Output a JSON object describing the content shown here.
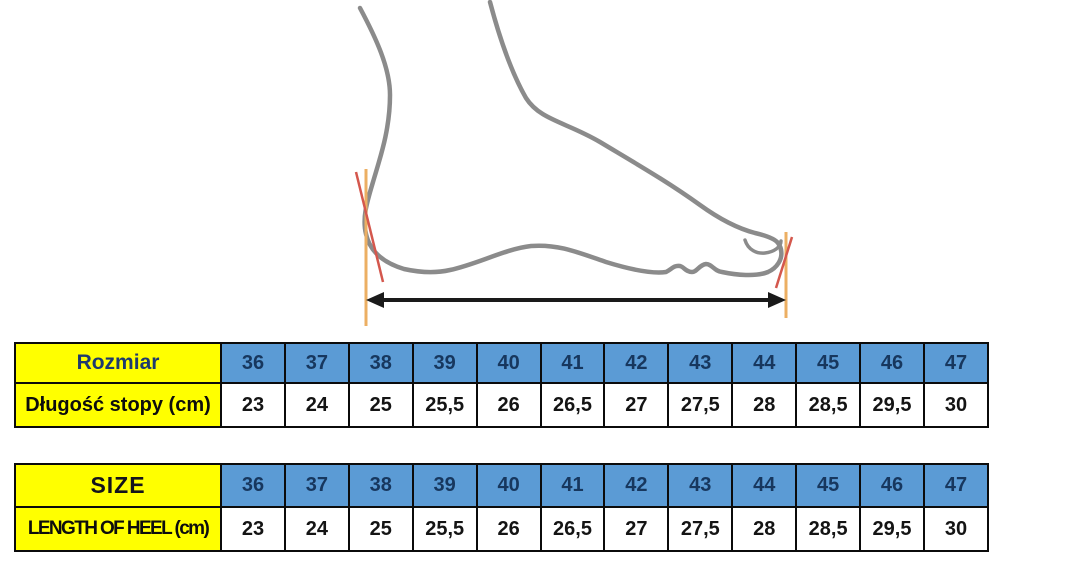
{
  "chart_data": {
    "type": "table",
    "tables": [
      {
        "header_label": "Rozmiar",
        "row_label": "Długość stopy (cm)",
        "sizes": [
          "36",
          "37",
          "38",
          "39",
          "40",
          "41",
          "42",
          "43",
          "44",
          "45",
          "46",
          "47"
        ],
        "lengths_cm": [
          "23",
          "24",
          "25",
          "25,5",
          "26",
          "26,5",
          "27",
          "27,5",
          "28",
          "28,5",
          "29,5",
          "30"
        ]
      },
      {
        "header_label": "SIZE",
        "row_label": "LENGTH OF HEEL (cm)",
        "sizes": [
          "36",
          "37",
          "38",
          "39",
          "40",
          "41",
          "42",
          "43",
          "44",
          "45",
          "46",
          "47"
        ],
        "lengths_cm": [
          "23",
          "24",
          "25",
          "25,5",
          "26",
          "26,5",
          "27",
          "27,5",
          "28",
          "28,5",
          "29,5",
          "30"
        ]
      }
    ]
  },
  "diagram": {
    "elements": [
      "foot-outline",
      "toenail",
      "heel-marker-line",
      "toe-marker-line",
      "heel-tangent-line",
      "toe-tangent-line",
      "foot-length-arrow"
    ]
  },
  "colors": {
    "label_fill": "#ffff00",
    "size_row_fill": "#5b9bd5",
    "size_text": "#17375e",
    "value_text": "#141414",
    "table_border": "#0b0b0b",
    "foot_outline": "#8b8b8b",
    "marker_line_orange": "#ecaf63",
    "tangent_line_red": "#d4574d",
    "arrow_black": "#1a1a1a"
  }
}
